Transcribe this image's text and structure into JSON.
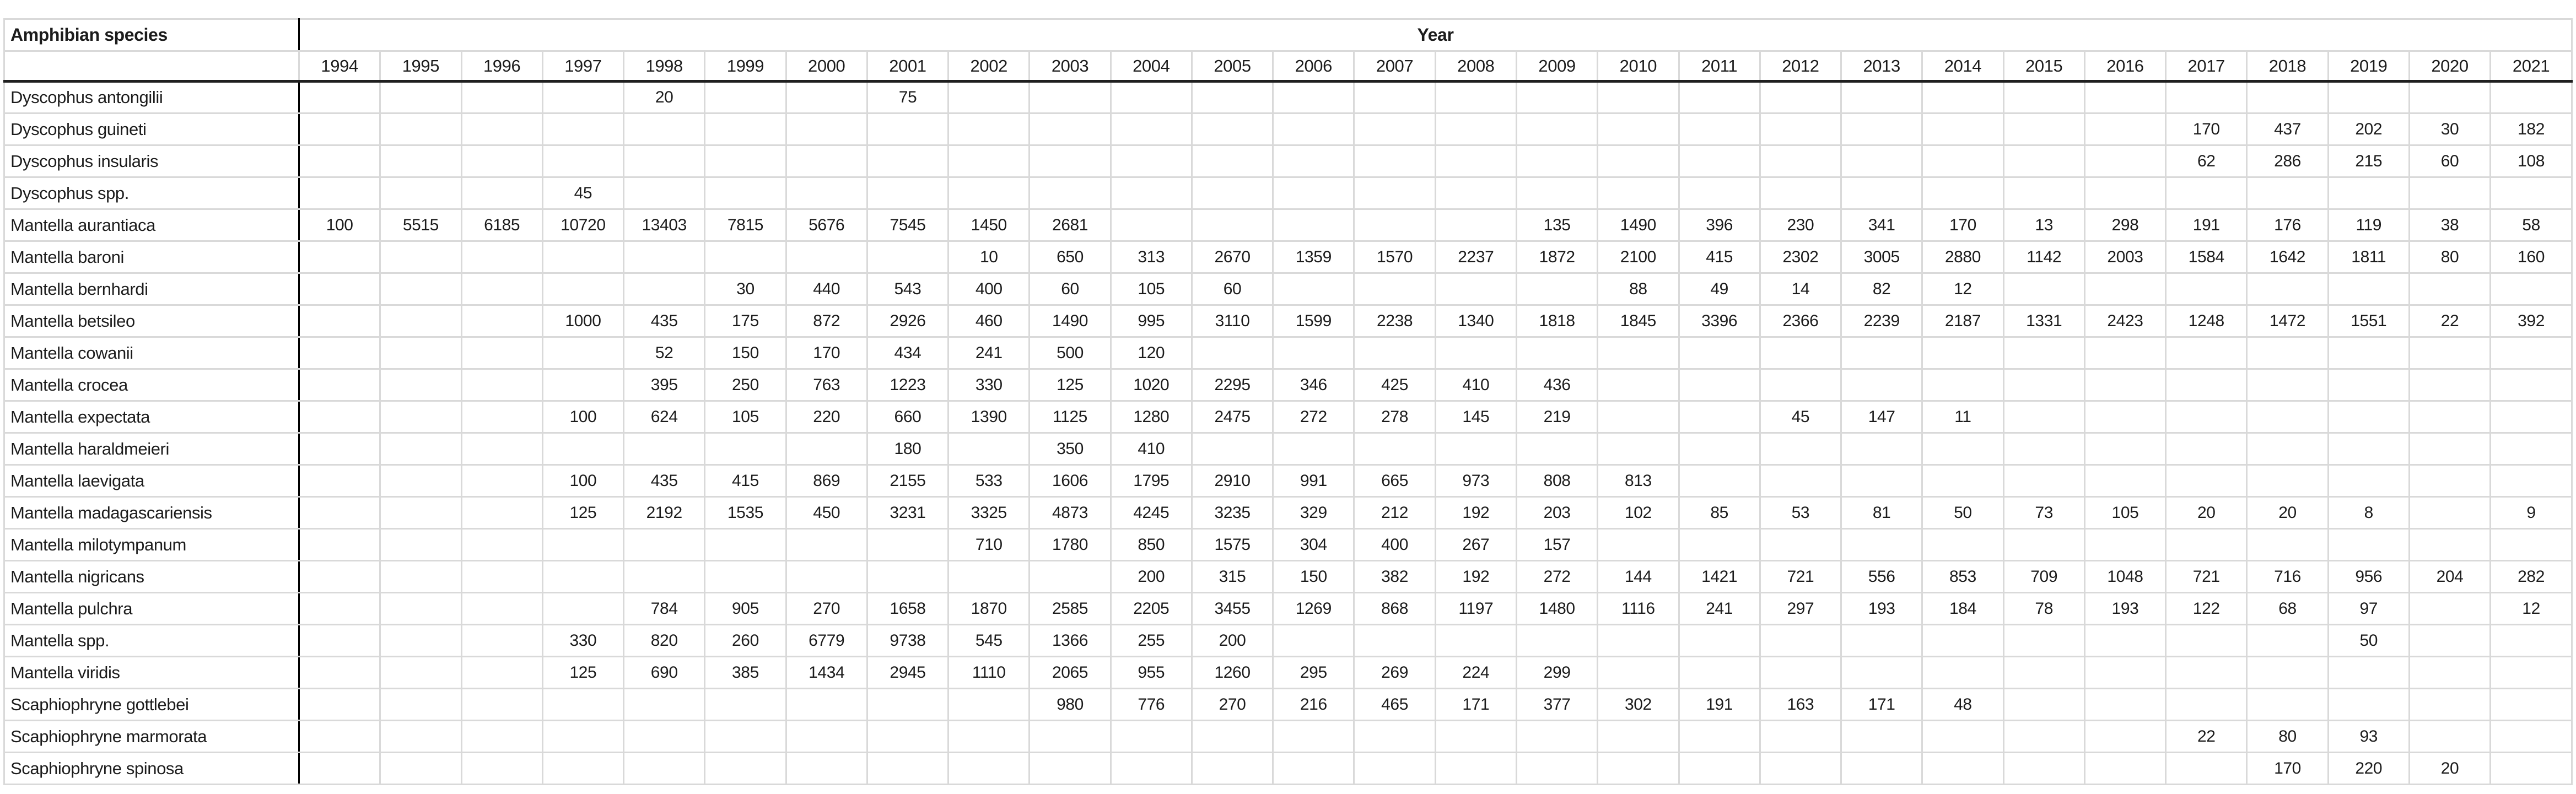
{
  "table": {
    "species_header": "Amphibian species",
    "year_group_header": "Year",
    "years": [
      "1994",
      "1995",
      "1996",
      "1997",
      "1998",
      "1999",
      "2000",
      "2001",
      "2002",
      "2003",
      "2004",
      "2005",
      "2006",
      "2007",
      "2008",
      "2009",
      "2010",
      "2011",
      "2012",
      "2013",
      "2014",
      "2015",
      "2016",
      "2017",
      "2018",
      "2019",
      "2020",
      "2021"
    ],
    "rows": [
      {
        "species": "Dyscophus antongilii",
        "values": [
          "",
          "",
          "",
          "",
          "20",
          "",
          "",
          "75",
          "",
          "",
          "",
          "",
          "",
          "",
          "",
          "",
          "",
          "",
          "",
          "",
          "",
          "",
          "",
          "",
          "",
          "",
          "",
          ""
        ]
      },
      {
        "species": "Dyscophus guineti",
        "values": [
          "",
          "",
          "",
          "",
          "",
          "",
          "",
          "",
          "",
          "",
          "",
          "",
          "",
          "",
          "",
          "",
          "",
          "",
          "",
          "",
          "",
          "",
          "",
          "170",
          "437",
          "202",
          "30",
          "182"
        ]
      },
      {
        "species": "Dyscophus insularis",
        "values": [
          "",
          "",
          "",
          "",
          "",
          "",
          "",
          "",
          "",
          "",
          "",
          "",
          "",
          "",
          "",
          "",
          "",
          "",
          "",
          "",
          "",
          "",
          "",
          "62",
          "286",
          "215",
          "60",
          "108"
        ]
      },
      {
        "species": "Dyscophus spp.",
        "values": [
          "",
          "",
          "",
          "45",
          "",
          "",
          "",
          "",
          "",
          "",
          "",
          "",
          "",
          "",
          "",
          "",
          "",
          "",
          "",
          "",
          "",
          "",
          "",
          "",
          "",
          "",
          "",
          ""
        ]
      },
      {
        "species": "Mantella aurantiaca",
        "values": [
          "100",
          "5515",
          "6185",
          "10720",
          "13403",
          "7815",
          "5676",
          "7545",
          "1450",
          "2681",
          "",
          "",
          "",
          "",
          "",
          "135",
          "1490",
          "396",
          "230",
          "341",
          "170",
          "13",
          "298",
          "191",
          "176",
          "119",
          "38",
          "58"
        ]
      },
      {
        "species": "Mantella baroni",
        "values": [
          "",
          "",
          "",
          "",
          "",
          "",
          "",
          "",
          "10",
          "650",
          "313",
          "2670",
          "1359",
          "1570",
          "2237",
          "1872",
          "2100",
          "415",
          "2302",
          "3005",
          "2880",
          "1142",
          "2003",
          "1584",
          "1642",
          "1811",
          "80",
          "160"
        ]
      },
      {
        "species": "Mantella bernhardi",
        "values": [
          "",
          "",
          "",
          "",
          "",
          "30",
          "440",
          "543",
          "400",
          "60",
          "105",
          "60",
          "",
          "",
          "",
          "",
          "88",
          "49",
          "14",
          "82",
          "12",
          "",
          "",
          "",
          "",
          "",
          "",
          ""
        ]
      },
      {
        "species": "Mantella betsileo",
        "values": [
          "",
          "",
          "",
          "1000",
          "435",
          "175",
          "872",
          "2926",
          "460",
          "1490",
          "995",
          "3110",
          "1599",
          "2238",
          "1340",
          "1818",
          "1845",
          "3396",
          "2366",
          "2239",
          "2187",
          "1331",
          "2423",
          "1248",
          "1472",
          "1551",
          "22",
          "392"
        ]
      },
      {
        "species": "Mantella cowanii",
        "values": [
          "",
          "",
          "",
          "",
          "52",
          "150",
          "170",
          "434",
          "241",
          "500",
          "120",
          "",
          "",
          "",
          "",
          "",
          "",
          "",
          "",
          "",
          "",
          "",
          "",
          "",
          "",
          "",
          "",
          ""
        ]
      },
      {
        "species": "Mantella crocea",
        "values": [
          "",
          "",
          "",
          "",
          "395",
          "250",
          "763",
          "1223",
          "330",
          "125",
          "1020",
          "2295",
          "346",
          "425",
          "410",
          "436",
          "",
          "",
          "",
          "",
          "",
          "",
          "",
          "",
          "",
          "",
          "",
          ""
        ]
      },
      {
        "species": "Mantella expectata",
        "values": [
          "",
          "",
          "",
          "100",
          "624",
          "105",
          "220",
          "660",
          "1390",
          "1125",
          "1280",
          "2475",
          "272",
          "278",
          "145",
          "219",
          "",
          "",
          "45",
          "147",
          "11",
          "",
          "",
          "",
          "",
          "",
          "",
          ""
        ]
      },
      {
        "species": "Mantella haraldmeieri",
        "values": [
          "",
          "",
          "",
          "",
          "",
          "",
          "",
          "180",
          "",
          "350",
          "410",
          "",
          "",
          "",
          "",
          "",
          "",
          "",
          "",
          "",
          "",
          "",
          "",
          "",
          "",
          "",
          "",
          ""
        ]
      },
      {
        "species": "Mantella laevigata",
        "values": [
          "",
          "",
          "",
          "100",
          "435",
          "415",
          "869",
          "2155",
          "533",
          "1606",
          "1795",
          "2910",
          "991",
          "665",
          "973",
          "808",
          "813",
          "",
          "",
          "",
          "",
          "",
          "",
          "",
          "",
          "",
          "",
          ""
        ]
      },
      {
        "species": "Mantella madagascariensis",
        "values": [
          "",
          "",
          "",
          "125",
          "2192",
          "1535",
          "450",
          "3231",
          "3325",
          "4873",
          "4245",
          "3235",
          "329",
          "212",
          "192",
          "203",
          "102",
          "85",
          "53",
          "81",
          "50",
          "73",
          "105",
          "20",
          "20",
          "8",
          "",
          "9"
        ]
      },
      {
        "species": "Mantella milotympanum",
        "values": [
          "",
          "",
          "",
          "",
          "",
          "",
          "",
          "",
          "710",
          "1780",
          "850",
          "1575",
          "304",
          "400",
          "267",
          "157",
          "",
          "",
          "",
          "",
          "",
          "",
          "",
          "",
          "",
          "",
          "",
          ""
        ]
      },
      {
        "species": "Mantella nigricans",
        "values": [
          "",
          "",
          "",
          "",
          "",
          "",
          "",
          "",
          "",
          "",
          "200",
          "315",
          "150",
          "382",
          "192",
          "272",
          "144",
          "1421",
          "721",
          "556",
          "853",
          "709",
          "1048",
          "721",
          "716",
          "956",
          "204",
          "282"
        ]
      },
      {
        "species": "Mantella pulchra",
        "values": [
          "",
          "",
          "",
          "",
          "784",
          "905",
          "270",
          "1658",
          "1870",
          "2585",
          "2205",
          "3455",
          "1269",
          "868",
          "1197",
          "1480",
          "1116",
          "241",
          "297",
          "193",
          "184",
          "78",
          "193",
          "122",
          "68",
          "97",
          "",
          "12"
        ]
      },
      {
        "species": "Mantella spp.",
        "values": [
          "",
          "",
          "",
          "330",
          "820",
          "260",
          "6779",
          "9738",
          "545",
          "1366",
          "255",
          "200",
          "",
          "",
          "",
          "",
          "",
          "",
          "",
          "",
          "",
          "",
          "",
          "",
          "",
          "50",
          "",
          ""
        ]
      },
      {
        "species": "Mantella viridis",
        "values": [
          "",
          "",
          "",
          "125",
          "690",
          "385",
          "1434",
          "2945",
          "1110",
          "2065",
          "955",
          "1260",
          "295",
          "269",
          "224",
          "299",
          "",
          "",
          "",
          "",
          "",
          "",
          "",
          "",
          "",
          "",
          "",
          ""
        ]
      },
      {
        "species": "Scaphiophryne gottlebei",
        "values": [
          "",
          "",
          "",
          "",
          "",
          "",
          "",
          "",
          "",
          "980",
          "776",
          "270",
          "216",
          "465",
          "171",
          "377",
          "302",
          "191",
          "163",
          "171",
          "48",
          "",
          "",
          "",
          "",
          "",
          "",
          ""
        ]
      },
      {
        "species": "Scaphiophryne marmorata",
        "values": [
          "",
          "",
          "",
          "",
          "",
          "",
          "",
          "",
          "",
          "",
          "",
          "",
          "",
          "",
          "",
          "",
          "",
          "",
          "",
          "",
          "",
          "",
          "",
          "22",
          "80",
          "93",
          "",
          ""
        ]
      },
      {
        "species": "Scaphiophryne spinosa",
        "values": [
          "",
          "",
          "",
          "",
          "",
          "",
          "",
          "",
          "",
          "",
          "",
          "",
          "",
          "",
          "",
          "",
          "",
          "",
          "",
          "",
          "",
          "",
          "",
          "",
          "170",
          "220",
          "20",
          ""
        ]
      }
    ]
  },
  "colors": {
    "gridline": "#d9d9d9",
    "species_divider": "#000000",
    "thick_rule": "#1f1f1f",
    "text": "#1c1c1c",
    "background": "#ffffff"
  }
}
